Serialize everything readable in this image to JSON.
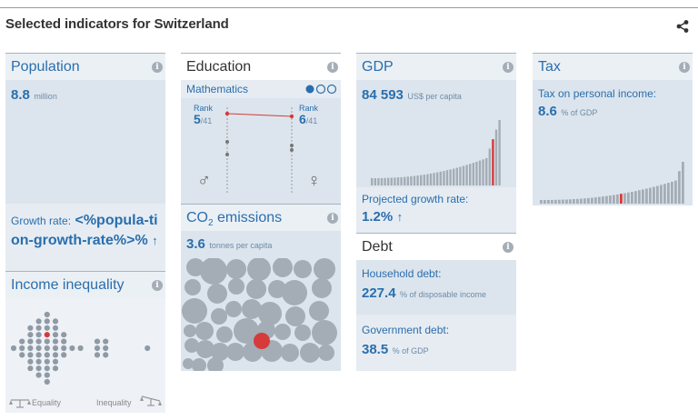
{
  "header": {
    "title": "Selected indicators for Switzerland"
  },
  "population": {
    "title": "Population",
    "value": "8.8",
    "unit": "million",
    "growth_label": "Growth rate:",
    "growth_value": "<%popula-tion-growth-rate%>%",
    "growth_arrow": "↑"
  },
  "income": {
    "title": "Income inequality",
    "left_label": "Equality",
    "right_label": "Inequality"
  },
  "education": {
    "title": "Education",
    "subject": "Mathematics",
    "rank_label_1": "Rank",
    "rank_1": "5",
    "rank_total_1": "/41",
    "rank_label_2": "Rank",
    "rank_2": "6",
    "rank_total_2": "/41",
    "male_symbol": "♂",
    "female_symbol": "♀"
  },
  "co2": {
    "title_prefix": "CO",
    "title_sub": "2",
    "title_suffix": " emissions",
    "value": "3.6",
    "unit": "tonnes per capita"
  },
  "gdp": {
    "title": "GDP",
    "value": "84 593",
    "unit": "US$ per capita",
    "growth_label": "Projected growth rate:",
    "growth_value": "1.2%",
    "growth_arrow": "↑"
  },
  "debt": {
    "title": "Debt",
    "household_label": "Household debt:",
    "household_value": "227.4",
    "household_unit": "% of disposable income",
    "government_label": "Government debt:",
    "government_value": "38.5",
    "government_unit": "% of GDP"
  },
  "tax": {
    "title": "Tax",
    "label": "Tax on personal income:",
    "value": "8.6",
    "unit": "% of GDP"
  },
  "colors": {
    "accent": "#2a6ead",
    "highlight": "#d63a3a",
    "bar": "#a4acb5",
    "panel": "#dce5ed"
  },
  "icons": [
    "share-icon",
    "info-icon",
    "male-icon",
    "female-icon",
    "scale-equality-icon",
    "scale-inequality-icon",
    "up-arrow-icon"
  ]
}
